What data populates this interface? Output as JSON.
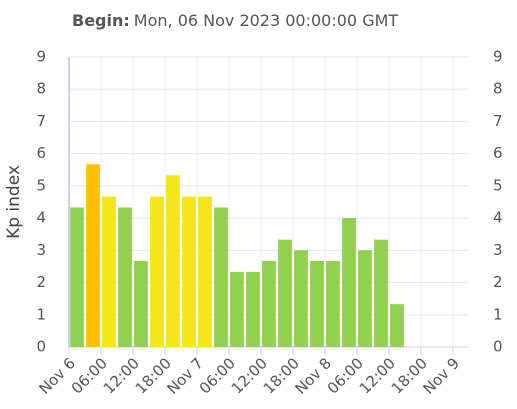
{
  "chart_data": {
    "type": "bar",
    "title_label": "Begin:",
    "title": "Mon, 06 Nov 2023 00:00:00 GMT",
    "y_label": "Kp index",
    "x": [
      1.5,
      4.5,
      7.5,
      10.5,
      13.5,
      16.5,
      19.5,
      22.5,
      25.5,
      28.5,
      31.5,
      34.5,
      37.5,
      40.5,
      43.5,
      46.5,
      49.5,
      52.5,
      55.5,
      58.5,
      61.5
    ],
    "values": [
      4.33,
      5.67,
      4.67,
      4.33,
      2.67,
      4.67,
      5.33,
      4.67,
      4.67,
      4.33,
      2.33,
      2.33,
      2.67,
      3.33,
      3.0,
      2.67,
      2.67,
      4.0,
      3.0,
      3.33,
      1.33
    ],
    "colors": [
      "#92d050",
      "#ffc000",
      "#f5e61a",
      "#92d050",
      "#92d050",
      "#f5e61a",
      "#f5e61a",
      "#f5e61a",
      "#f5e61a",
      "#92d050",
      "#92d050",
      "#92d050",
      "#92d050",
      "#92d050",
      "#92d050",
      "#92d050",
      "#92d050",
      "#92d050",
      "#92d050",
      "#92d050",
      "#92d050"
    ],
    "xlim": [
      0,
      75
    ],
    "xticks": [
      {
        "value": 0,
        "label": "Nov 6"
      },
      {
        "value": 6,
        "label": "06:00"
      },
      {
        "value": 12,
        "label": "12:00"
      },
      {
        "value": 18,
        "label": "18:00"
      },
      {
        "value": 24,
        "label": "Nov 7"
      },
      {
        "value": 30,
        "label": "06:00"
      },
      {
        "value": 36,
        "label": "12:00"
      },
      {
        "value": 42,
        "label": "18:00"
      },
      {
        "value": 48,
        "label": "Nov 8"
      },
      {
        "value": 54,
        "label": "06:00"
      },
      {
        "value": 60,
        "label": "12:00"
      },
      {
        "value": 66,
        "label": "18:00"
      },
      {
        "value": 72,
        "label": "Nov 9"
      }
    ],
    "ylim": [
      0,
      9
    ],
    "yticks": [
      0,
      1,
      2,
      3,
      4,
      5,
      6,
      7,
      8,
      9
    ],
    "y2lim": [
      0,
      9
    ],
    "y2ticks": [
      0,
      1,
      2,
      3,
      4,
      5,
      6,
      7,
      8,
      9
    ],
    "grid": true
  }
}
